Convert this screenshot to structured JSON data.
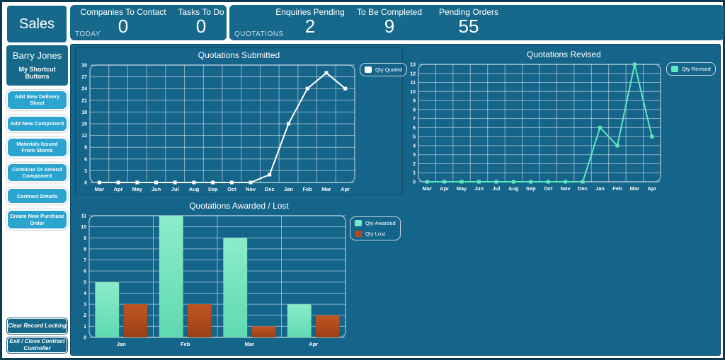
{
  "header": {
    "app_title": "Sales",
    "today": {
      "label": "TODAY",
      "metrics": [
        {
          "label": "Companies To Contact",
          "value": "0"
        },
        {
          "label": "Tasks To Do",
          "value": "0"
        }
      ]
    },
    "quotations": {
      "label": "QUOTATIONS",
      "metrics": [
        {
          "label": "Enquiries Pending",
          "value": "2"
        },
        {
          "label": "To Be Completed",
          "value": "9"
        },
        {
          "label": "Pending Orders",
          "value": "55"
        }
      ]
    }
  },
  "sidebar": {
    "user_name": "Barry Jones",
    "subtitle": "My Shortcut Buttons",
    "shortcut_buttons": [
      "Add New Delivery Sheet",
      "Add New Component",
      "Materials Issued From Stores",
      "Continue Or Amend Component",
      "Contract Details",
      "Create New Purchase Order"
    ],
    "footer_buttons": [
      "Clear Record Locking",
      "Exit / Close Contract Controller"
    ]
  },
  "colors": {
    "panel_teal": "#17698c",
    "main_background": "#15648a",
    "shortcut_button_blue": "#2ba4cf",
    "quoted_line": "#ffffff",
    "revised_line": "#5fe7bd",
    "awarded_bar": "#7ce8c6",
    "lost_bar": "#b24a1d"
  },
  "chart_data": [
    {
      "type": "line",
      "title": "Quotations Submitted",
      "categories": [
        "Mar",
        "Apr",
        "May",
        "Jun",
        "Jul",
        "Aug",
        "Sep",
        "Oct",
        "Nov",
        "Dec",
        "Jan",
        "Feb",
        "Mar",
        "Apr"
      ],
      "series": [
        {
          "name": "Qty Quoted",
          "color": "#ffffff",
          "values": [
            0,
            0,
            0,
            0,
            0,
            0,
            0,
            0,
            0,
            2,
            15,
            24,
            28,
            24
          ]
        }
      ],
      "xlabel": "",
      "ylabel": "",
      "ylim": [
        0,
        30
      ],
      "ytick_step": 3,
      "grid": true,
      "legend_position": "top-right"
    },
    {
      "type": "line",
      "title": "Quotations Revised",
      "categories": [
        "Mar",
        "Apr",
        "May",
        "Jun",
        "Jul",
        "Aug",
        "Sep",
        "Oct",
        "Nov",
        "Dec",
        "Jan",
        "Feb",
        "Mar",
        "Apr"
      ],
      "series": [
        {
          "name": "Qty Revised",
          "color": "#5fe7bd",
          "values": [
            0,
            0,
            0,
            0,
            0,
            0,
            0,
            0,
            0,
            0,
            6,
            4,
            13,
            5
          ]
        }
      ],
      "xlabel": "",
      "ylabel": "",
      "ylim": [
        0,
        13
      ],
      "ytick_step": 1,
      "grid": true,
      "legend_position": "top-right"
    },
    {
      "type": "bar",
      "title": "Quotations Awarded / Lost",
      "categories": [
        "Jan",
        "Feb",
        "Mar",
        "Apr"
      ],
      "series": [
        {
          "name": "Qty Awarded",
          "color": "#7ce8c6",
          "gradient": [
            "#8ceccb",
            "#5fd9b2"
          ],
          "values": [
            5,
            11,
            9,
            3
          ]
        },
        {
          "name": "Qty Lost",
          "color": "#b24a1d",
          "gradient": [
            "#c05522",
            "#9c3f16"
          ],
          "values": [
            3,
            3,
            1,
            2
          ]
        }
      ],
      "xlabel": "",
      "ylabel": "",
      "ylim": [
        0,
        11
      ],
      "ytick_step": 1,
      "grid": true,
      "legend_position": "top-right"
    }
  ]
}
